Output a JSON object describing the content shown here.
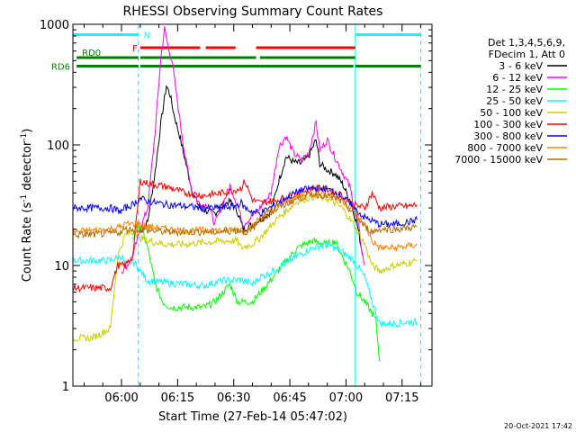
{
  "chart_data": {
    "type": "line",
    "title": "RHESSI Observing Summary Count Rates",
    "xlabel": "Start Time (27-Feb-14 05:47:02)",
    "ylabel": "Count Rate (s",
    "ylabel_sup": "-1",
    "ylabel_tail": " detector",
    "ylabel_sup2": "-1",
    "ylabel_end": ")",
    "y_scale": "log",
    "ylim": [
      1,
      1000
    ],
    "xlim_minutes": [
      0,
      96
    ],
    "x_tick_minutes": [
      13,
      28,
      43,
      58,
      73,
      88
    ],
    "x_ticks": [
      "06:00",
      "06:15",
      "06:30",
      "06:45",
      "07:00",
      "07:15"
    ],
    "y_ticks": [
      {
        "value": 1,
        "label": "1"
      },
      {
        "value": 10,
        "label": "10"
      },
      {
        "value": 100,
        "label": "100"
      },
      {
        "value": 1000,
        "label": "1000"
      }
    ],
    "y_exp_label": {
      "base": "10",
      "exp": "1"
    },
    "y_exp_value": 10,
    "legend_header": [
      "Det 1,3,4,5,6,9,",
      "FDecim 1, Att 0"
    ],
    "legend_position": "right",
    "series": [
      {
        "name": "3 - 6 keV",
        "color": "#000000",
        "points": [
          [
            18,
            19
          ],
          [
            20,
            23
          ],
          [
            22,
            60
          ],
          [
            23.5,
            150
          ],
          [
            25,
            310
          ],
          [
            26,
            260
          ],
          [
            27,
            180
          ],
          [
            28.5,
            120
          ],
          [
            30,
            75
          ],
          [
            32,
            40
          ],
          [
            34,
            30
          ],
          [
            36,
            28
          ],
          [
            38,
            27
          ],
          [
            40,
            32
          ],
          [
            42,
            34
          ],
          [
            44,
            28
          ],
          [
            45.5,
            20
          ],
          [
            47,
            21
          ],
          [
            50,
            24
          ],
          [
            53,
            28
          ],
          [
            55,
            50
          ],
          [
            57,
            80
          ],
          [
            59,
            72
          ],
          [
            61,
            70
          ],
          [
            63,
            80
          ],
          [
            65,
            110
          ],
          [
            66,
            70
          ],
          [
            68,
            62
          ],
          [
            70,
            58
          ],
          [
            72,
            48
          ],
          [
            74,
            35
          ],
          [
            76,
            22
          ],
          [
            77.5,
            12
          ]
        ]
      },
      {
        "name": "6 - 12 keV",
        "color": "#ff00ff",
        "points": [
          [
            13,
            9
          ],
          [
            14.5,
            10
          ],
          [
            16,
            12
          ],
          [
            18,
            20
          ],
          [
            20,
            30
          ],
          [
            22,
            130
          ],
          [
            23.5,
            520
          ],
          [
            24.5,
            920
          ],
          [
            25.5,
            640
          ],
          [
            26.5,
            500
          ],
          [
            28,
            220
          ],
          [
            30,
            80
          ],
          [
            32,
            40
          ],
          [
            34,
            32
          ],
          [
            36,
            32
          ],
          [
            38,
            22
          ],
          [
            40,
            32
          ],
          [
            42,
            46
          ],
          [
            44,
            32
          ],
          [
            45.5,
            22
          ],
          [
            47,
            24
          ],
          [
            50,
            30
          ],
          [
            53,
            40
          ],
          [
            55,
            95
          ],
          [
            57,
            118
          ],
          [
            59,
            85
          ],
          [
            61,
            75
          ],
          [
            63,
            85
          ],
          [
            65,
            155
          ],
          [
            66,
            90
          ],
          [
            68,
            110
          ],
          [
            70,
            80
          ],
          [
            72,
            60
          ],
          [
            74,
            45
          ],
          [
            76,
            25
          ],
          [
            77.5,
            12
          ],
          [
            78,
            10
          ]
        ]
      },
      {
        "name": "12 - 25 keV",
        "color": "#00ff00",
        "points": [
          [
            16,
            16
          ],
          [
            17,
            20
          ],
          [
            18,
            22
          ],
          [
            20,
            14
          ],
          [
            22,
            7
          ],
          [
            24,
            5
          ],
          [
            26,
            4.5
          ],
          [
            30,
            4.5
          ],
          [
            35,
            4.5
          ],
          [
            38,
            5
          ],
          [
            42,
            7
          ],
          [
            44,
            5
          ],
          [
            48,
            5
          ],
          [
            52,
            7
          ],
          [
            56,
            10
          ],
          [
            60,
            14
          ],
          [
            64,
            16
          ],
          [
            68,
            15
          ],
          [
            70,
            16
          ],
          [
            72,
            12
          ],
          [
            74,
            9
          ],
          [
            76,
            6
          ],
          [
            78,
            5
          ],
          [
            80,
            4
          ],
          [
            81,
            3.5
          ],
          [
            82,
            1.6
          ]
        ]
      },
      {
        "name": "25 - 50 keV",
        "color": "#00ffff",
        "points": [
          [
            0,
            11
          ],
          [
            5,
            11
          ],
          [
            10,
            11
          ],
          [
            13,
            12
          ],
          [
            14,
            10
          ],
          [
            16,
            11
          ],
          [
            18,
            9
          ],
          [
            20,
            7.5
          ],
          [
            25,
            7.2
          ],
          [
            30,
            7
          ],
          [
            35,
            6.8
          ],
          [
            40,
            7.5
          ],
          [
            45,
            7.6
          ],
          [
            48,
            7
          ],
          [
            50,
            8
          ],
          [
            52,
            8.5
          ],
          [
            56,
            10
          ],
          [
            60,
            12
          ],
          [
            64,
            14
          ],
          [
            68,
            15
          ],
          [
            72,
            13
          ],
          [
            75,
            11
          ],
          [
            77,
            9
          ],
          [
            78,
            8
          ],
          [
            80,
            5
          ],
          [
            82,
            3.3
          ],
          [
            85,
            3.3
          ],
          [
            90,
            3.4
          ],
          [
            92,
            3.4
          ]
        ]
      },
      {
        "name": "50 - 100 keV",
        "color": "#cccc00",
        "points": [
          [
            0,
            2.5
          ],
          [
            5,
            2.5
          ],
          [
            10,
            3
          ],
          [
            12,
            12
          ],
          [
            14,
            18
          ],
          [
            16,
            19
          ],
          [
            18,
            17
          ],
          [
            20,
            16
          ],
          [
            25,
            15
          ],
          [
            30,
            15
          ],
          [
            35,
            15.5
          ],
          [
            40,
            16
          ],
          [
            44,
            16
          ],
          [
            45,
            14
          ],
          [
            48,
            15
          ],
          [
            50,
            17
          ],
          [
            55,
            25
          ],
          [
            60,
            34
          ],
          [
            64,
            37
          ],
          [
            68,
            36
          ],
          [
            72,
            30
          ],
          [
            75,
            22
          ],
          [
            78,
            15
          ],
          [
            80,
            10
          ],
          [
            82,
            9
          ],
          [
            86,
            10
          ],
          [
            90,
            10.5
          ],
          [
            92,
            11
          ]
        ]
      },
      {
        "name": "100 - 300 keV",
        "color": "#ff0000",
        "points": [
          [
            0,
            6.5
          ],
          [
            5,
            6.5
          ],
          [
            10,
            6.5
          ],
          [
            12,
            10
          ],
          [
            14,
            10
          ],
          [
            16,
            12
          ],
          [
            18,
            50
          ],
          [
            20,
            48
          ],
          [
            25,
            45
          ],
          [
            30,
            40
          ],
          [
            35,
            38
          ],
          [
            40,
            40
          ],
          [
            43,
            42
          ],
          [
            45,
            44
          ],
          [
            46,
            50
          ],
          [
            48,
            35
          ],
          [
            50,
            33
          ],
          [
            55,
            35
          ],
          [
            60,
            40
          ],
          [
            64,
            44
          ],
          [
            68,
            43
          ],
          [
            72,
            38
          ],
          [
            75,
            32
          ],
          [
            78,
            30
          ],
          [
            80,
            40
          ],
          [
            82,
            30
          ],
          [
            86,
            31
          ],
          [
            90,
            31
          ],
          [
            92,
            32
          ]
        ]
      },
      {
        "name": "300 - 800 keV",
        "color": "#0000ff",
        "points": [
          [
            0,
            30
          ],
          [
            5,
            30
          ],
          [
            10,
            30
          ],
          [
            13,
            28
          ],
          [
            14,
            30
          ],
          [
            16,
            32
          ],
          [
            18,
            36
          ],
          [
            20,
            34
          ],
          [
            25,
            32
          ],
          [
            30,
            31
          ],
          [
            35,
            30
          ],
          [
            40,
            30
          ],
          [
            43,
            31
          ],
          [
            45,
            33
          ],
          [
            46,
            30
          ],
          [
            48,
            28
          ],
          [
            50,
            27
          ],
          [
            55,
            33
          ],
          [
            60,
            41
          ],
          [
            64,
            44
          ],
          [
            68,
            43
          ],
          [
            72,
            38
          ],
          [
            75,
            30
          ],
          [
            78,
            25
          ],
          [
            82,
            22
          ],
          [
            86,
            22
          ],
          [
            90,
            23
          ],
          [
            92,
            24
          ]
        ]
      },
      {
        "name": "800 - 7000 keV",
        "color": "#ff8000",
        "points": [
          [
            0,
            19
          ],
          [
            5,
            19.5
          ],
          [
            10,
            20
          ],
          [
            13,
            21
          ],
          [
            14,
            22
          ],
          [
            16,
            22
          ],
          [
            18,
            22
          ],
          [
            20,
            21
          ],
          [
            25,
            20
          ],
          [
            30,
            19.5
          ],
          [
            35,
            19.5
          ],
          [
            40,
            19.5
          ],
          [
            43,
            20
          ],
          [
            45,
            20
          ],
          [
            46,
            19
          ],
          [
            48,
            21
          ],
          [
            50,
            25
          ],
          [
            55,
            31
          ],
          [
            60,
            37
          ],
          [
            64,
            40
          ],
          [
            68,
            39
          ],
          [
            72,
            35
          ],
          [
            75,
            28
          ],
          [
            78,
            22
          ],
          [
            80,
            16
          ],
          [
            82,
            14
          ],
          [
            86,
            14
          ],
          [
            90,
            14.5
          ],
          [
            92,
            15
          ]
        ]
      },
      {
        "name": "7000 - 15000 keV",
        "color": "#b07000",
        "points": [
          [
            0,
            18
          ],
          [
            5,
            18
          ],
          [
            10,
            18.5
          ],
          [
            13,
            19
          ],
          [
            14,
            20
          ],
          [
            16,
            20
          ],
          [
            18,
            20
          ],
          [
            20,
            19.5
          ],
          [
            25,
            19
          ],
          [
            30,
            19
          ],
          [
            35,
            19
          ],
          [
            40,
            19
          ],
          [
            43,
            19.5
          ],
          [
            45,
            19.5
          ],
          [
            46,
            19
          ],
          [
            48,
            20
          ],
          [
            50,
            24
          ],
          [
            55,
            30
          ],
          [
            60,
            36
          ],
          [
            64,
            39
          ],
          [
            68,
            38
          ],
          [
            72,
            34
          ],
          [
            75,
            27
          ],
          [
            78,
            21
          ],
          [
            80,
            19
          ],
          [
            82,
            20
          ],
          [
            86,
            20
          ],
          [
            90,
            20.5
          ],
          [
            92,
            21
          ]
        ]
      }
    ],
    "attenuator_flags": [
      {
        "label": "N",
        "color": "#00ffff",
        "y": 820,
        "segments": [
          [
            0,
            17.5
          ],
          [
            75.5,
            93
          ]
        ]
      },
      {
        "label": "F",
        "color": "#ff0000",
        "y": 640,
        "segments": [
          [
            18,
            34
          ],
          [
            35.5,
            43.5
          ],
          [
            49,
            75.5
          ]
        ]
      },
      {
        "label": "RD0",
        "color": "#008000",
        "y": 530,
        "segments": [
          [
            1,
            17.5
          ],
          [
            18,
            49
          ],
          [
            50,
            75.5
          ]
        ]
      },
      {
        "label": "RD6",
        "color": "#008000",
        "y": 450,
        "segments": [
          [
            1,
            17.5
          ],
          [
            18,
            50
          ],
          [
            50,
            75
          ],
          [
            75.5,
            93
          ]
        ]
      }
    ],
    "vertical_lines": [
      {
        "minute": 17.5,
        "color": "#00ffff",
        "style": "dashed"
      },
      {
        "minute": 75.5,
        "color": "#00ffff",
        "style": "solid"
      },
      {
        "minute": 93,
        "color": "#00ffff",
        "style": "dashed"
      }
    ]
  },
  "footer": {
    "date": "20-Oct-2021 17:42"
  }
}
